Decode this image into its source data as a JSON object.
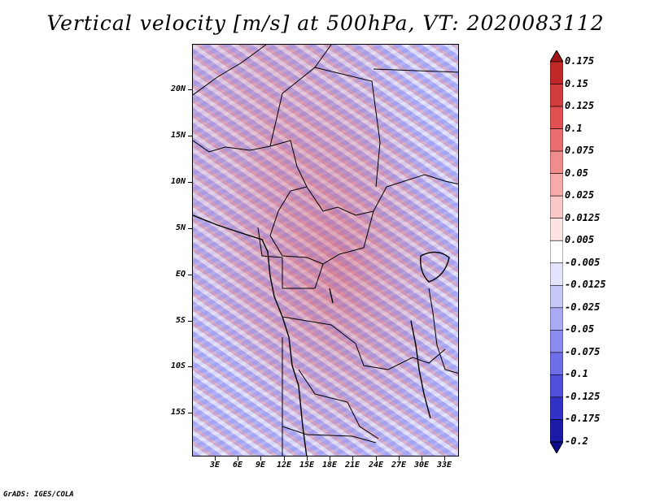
{
  "title": "Vertical velocity [m/s] at 500hPa, VT: 2020083112",
  "lat_labels": [
    "20N",
    "15N",
    "10N",
    "5N",
    "EQ",
    "5S",
    "10S",
    "15S"
  ],
  "lon_labels": [
    "3E",
    "6E",
    "9E",
    "12E",
    "15E",
    "18E",
    "21E",
    "24E",
    "27E",
    "30E",
    "33E"
  ],
  "colorbar": {
    "labels": [
      "0.175",
      "0.15",
      "0.125",
      "0.1",
      "0.075",
      "0.05",
      "0.025",
      "0.0125",
      "0.005",
      "-0.005",
      "-0.0125",
      "-0.025",
      "-0.05",
      "-0.075",
      "-0.1",
      "-0.125",
      "-0.175",
      "-0.2"
    ],
    "colors": [
      "#a01616",
      "#c02828",
      "#d23c3c",
      "#e05050",
      "#ea6e6e",
      "#f08c8c",
      "#f6aaaa",
      "#fac8c8",
      "#fde4e4",
      "#ffffff",
      "#e4e4fc",
      "#c8c8f8",
      "#aaaaf4",
      "#8c8cf0",
      "#6e6ee8",
      "#5050dc",
      "#3232c8",
      "#1a1aa6",
      "#0c0c8c"
    ]
  },
  "credit": "GrADS: IGES/COLA"
}
